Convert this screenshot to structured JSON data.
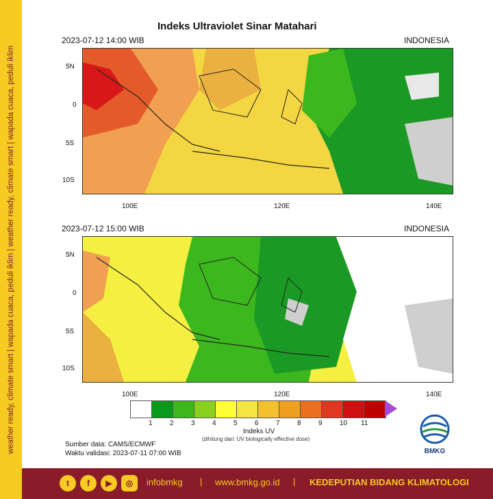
{
  "side_text": "weather ready, climate smart  |  wapada cuaca, peduli iklim  |  weather ready, climate smart  |  wapada cuaca, peduli iklim",
  "title": "Indeks Ultraviolet Sinar Matahari",
  "panels": [
    {
      "timestamp": "2023-07-12  14:00 WIB",
      "region": "INDONESIA"
    },
    {
      "timestamp": "2023-07-12  15:00 WIB",
      "region": "INDONESIA"
    }
  ],
  "axes": {
    "lat_ticks": [
      "5N",
      "0",
      "5S",
      "10S"
    ],
    "lon_ticks": [
      "100E",
      "120E",
      "140E"
    ]
  },
  "legend": {
    "labels": [
      "1",
      "2",
      "3",
      "4",
      "5",
      "6",
      "7",
      "8",
      "9",
      "10",
      "11"
    ],
    "colors": [
      "#ffffff",
      "#0a9a1a",
      "#3cb81e",
      "#8ad020",
      "#ffff33",
      "#f4e640",
      "#f4c030",
      "#f0a020",
      "#e87020",
      "#e03820",
      "#d01010",
      "#c00000"
    ],
    "arrow_color": "#a54ad8",
    "title": "Indeks UV",
    "subtitle": "(dihitung dari: UV biologically effective dose)"
  },
  "source": {
    "line1": "Sumber data: CAMS/ECMWF",
    "line2": "Waktu validasi: 2023-07-11 07:00 WIB"
  },
  "logo_text": "BMKG",
  "footer": {
    "handle": "infobmkg",
    "website": "www.bmkg.go.id",
    "department": "KEDEPUTIAN BIDANG KLIMATOLOGI",
    "separator": "|",
    "icons": [
      "twitter-icon",
      "facebook-icon",
      "youtube-icon",
      "instagram-icon"
    ]
  }
}
